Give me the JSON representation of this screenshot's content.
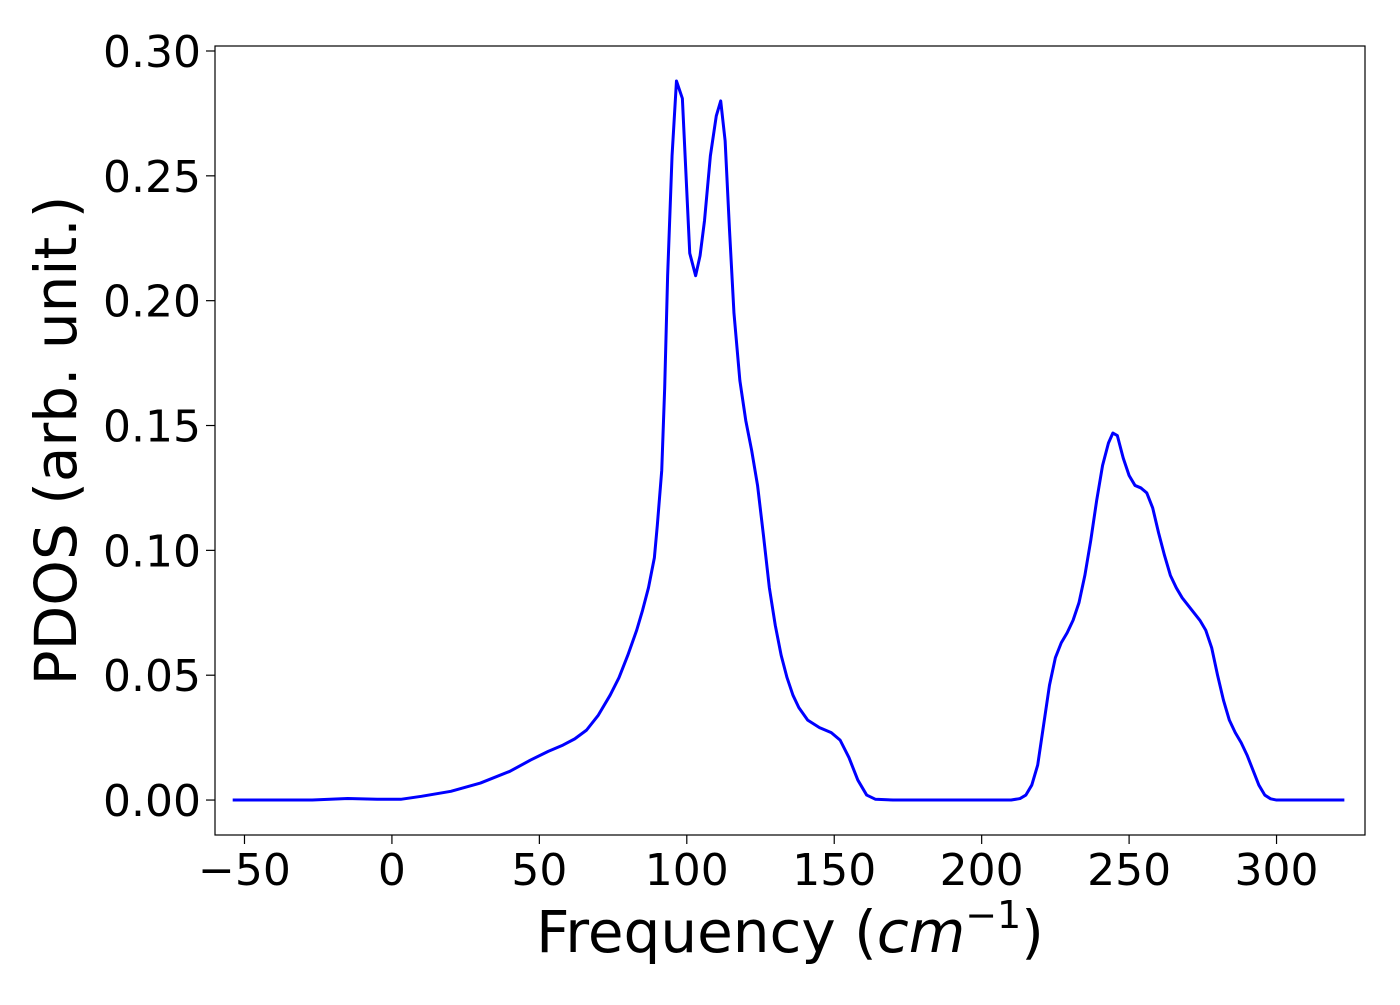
{
  "chart_data": {
    "type": "line",
    "title": "",
    "xlabel_text": "Frequency (",
    "xlabel_math": "cm",
    "xlabel_sup": "−1",
    "xlabel_close": ")",
    "ylabel": "PDOS (arb. unit.)",
    "xlim": [
      -60,
      330
    ],
    "ylim": [
      -0.014,
      0.302
    ],
    "xticks": [
      -50,
      0,
      50,
      100,
      150,
      200,
      250,
      300
    ],
    "xtick_labels": [
      "−50",
      "0",
      "50",
      "100",
      "150",
      "200",
      "250",
      "300"
    ],
    "yticks": [
      0.0,
      0.05,
      0.1,
      0.15,
      0.2,
      0.25,
      0.3
    ],
    "ytick_labels": [
      "0.00",
      "0.05",
      "0.10",
      "0.15",
      "0.20",
      "0.25",
      "0.30"
    ],
    "grid": false,
    "legend": "none",
    "series": [
      {
        "color": "#0000ff",
        "points": [
          [
            -54,
            0.0
          ],
          [
            -40,
            0.0
          ],
          [
            -27,
            0.0
          ],
          [
            -15,
            0.0006
          ],
          [
            -5,
            0.0003
          ],
          [
            3,
            0.0003
          ],
          [
            10,
            0.0015
          ],
          [
            20,
            0.0035
          ],
          [
            30,
            0.0068
          ],
          [
            40,
            0.0115
          ],
          [
            47,
            0.016
          ],
          [
            53,
            0.0195
          ],
          [
            58,
            0.022
          ],
          [
            62,
            0.0245
          ],
          [
            66,
            0.028
          ],
          [
            70,
            0.034
          ],
          [
            74,
            0.042
          ],
          [
            77,
            0.049
          ],
          [
            80,
            0.058
          ],
          [
            83,
            0.068
          ],
          [
            85,
            0.076
          ],
          [
            87,
            0.085
          ],
          [
            89,
            0.097
          ],
          [
            90,
            0.11
          ],
          [
            91.5,
            0.132
          ],
          [
            92.5,
            0.165
          ],
          [
            93.5,
            0.21
          ],
          [
            95,
            0.258
          ],
          [
            96.5,
            0.288
          ],
          [
            98.5,
            0.281
          ],
          [
            101,
            0.219
          ],
          [
            103,
            0.21
          ],
          [
            104.5,
            0.218
          ],
          [
            106,
            0.232
          ],
          [
            108,
            0.258
          ],
          [
            110,
            0.274
          ],
          [
            111.5,
            0.28
          ],
          [
            113,
            0.264
          ],
          [
            114.5,
            0.228
          ],
          [
            116,
            0.195
          ],
          [
            118,
            0.168
          ],
          [
            120,
            0.152
          ],
          [
            122,
            0.14
          ],
          [
            124,
            0.126
          ],
          [
            126,
            0.106
          ],
          [
            128,
            0.085
          ],
          [
            130,
            0.07
          ],
          [
            132,
            0.058
          ],
          [
            134,
            0.049
          ],
          [
            136,
            0.042
          ],
          [
            138,
            0.037
          ],
          [
            141,
            0.032
          ],
          [
            145,
            0.029
          ],
          [
            149,
            0.027
          ],
          [
            152,
            0.024
          ],
          [
            155,
            0.017
          ],
          [
            158,
            0.008
          ],
          [
            161,
            0.002
          ],
          [
            164,
            0.0003
          ],
          [
            170,
            0.0
          ],
          [
            180,
            0.0
          ],
          [
            200,
            0.0
          ],
          [
            210,
            0.0
          ],
          [
            213,
            0.0006
          ],
          [
            215,
            0.002
          ],
          [
            217,
            0.006
          ],
          [
            219,
            0.014
          ],
          [
            221,
            0.03
          ],
          [
            223,
            0.046
          ],
          [
            225,
            0.057
          ],
          [
            227,
            0.063
          ],
          [
            229,
            0.067
          ],
          [
            231,
            0.072
          ],
          [
            233,
            0.079
          ],
          [
            235,
            0.09
          ],
          [
            237,
            0.104
          ],
          [
            239,
            0.12
          ],
          [
            241,
            0.134
          ],
          [
            243,
            0.143
          ],
          [
            244.5,
            0.147
          ],
          [
            246,
            0.146
          ],
          [
            248,
            0.137
          ],
          [
            250,
            0.13
          ],
          [
            252,
            0.126
          ],
          [
            254,
            0.125
          ],
          [
            256,
            0.123
          ],
          [
            258,
            0.117
          ],
          [
            260,
            0.107
          ],
          [
            262,
            0.098
          ],
          [
            264,
            0.09
          ],
          [
            266,
            0.085
          ],
          [
            268,
            0.081
          ],
          [
            270,
            0.078
          ],
          [
            272,
            0.075
          ],
          [
            274,
            0.072
          ],
          [
            276,
            0.068
          ],
          [
            278,
            0.061
          ],
          [
            280,
            0.05
          ],
          [
            282,
            0.04
          ],
          [
            284,
            0.032
          ],
          [
            286,
            0.027
          ],
          [
            288,
            0.023
          ],
          [
            290,
            0.018
          ],
          [
            292,
            0.012
          ],
          [
            294,
            0.006
          ],
          [
            296,
            0.002
          ],
          [
            298,
            0.0005
          ],
          [
            300,
            0.0
          ],
          [
            310,
            0.0
          ],
          [
            323,
            0.0
          ]
        ]
      }
    ]
  }
}
